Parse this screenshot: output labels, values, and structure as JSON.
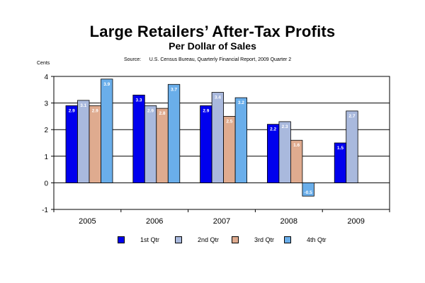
{
  "header": {
    "title": "Large Retailers’ After-Tax Profits",
    "subtitle": "Per Dollar of Sales",
    "source": "Source:      U.S. Census Bureau, Quarterly Financial Report, 2009 Quarter 2"
  },
  "chart_data": {
    "type": "bar",
    "title": "Large Retailers’ After-Tax Profits",
    "subtitle": "Per Dollar of Sales",
    "ylabel": "Cents",
    "xlabel": "",
    "ylim": [
      -1,
      4
    ],
    "yticks": [
      -1,
      0,
      1,
      2,
      3,
      4
    ],
    "grid": true,
    "legend_position": "bottom",
    "categories": [
      "2005",
      "2006",
      "2007",
      "2008",
      "2009"
    ],
    "series": [
      {
        "name": "1st Qtr",
        "color": "#0000ee",
        "values": [
          2.9,
          3.3,
          2.9,
          2.2,
          1.5
        ]
      },
      {
        "name": "2nd Qtr",
        "color": "#a9b9dd",
        "values": [
          3.1,
          2.9,
          3.4,
          2.3,
          2.7
        ]
      },
      {
        "name": "3rd Qtr",
        "color": "#dfab8f",
        "values": [
          2.9,
          2.8,
          2.5,
          1.6,
          null
        ]
      },
      {
        "name": "4th Qtr",
        "color": "#6aaeea",
        "values": [
          3.9,
          3.7,
          3.2,
          -0.5,
          null
        ]
      }
    ]
  }
}
